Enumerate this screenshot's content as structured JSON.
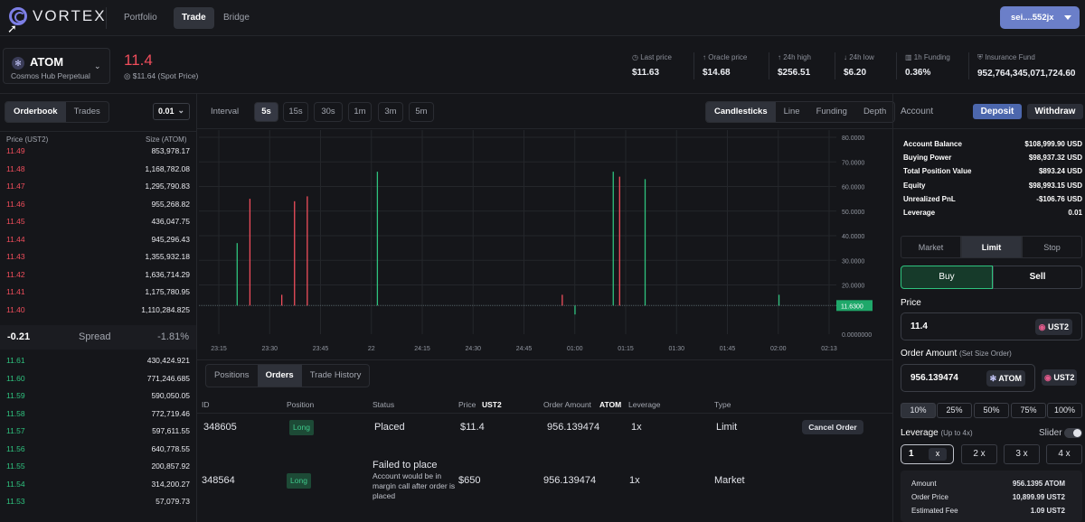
{
  "topbar": {
    "brand": "VORTEX",
    "nav": [
      "Portfolio",
      "Trade",
      "Bridge"
    ],
    "wallet": "sei....552jx"
  },
  "market": {
    "symbol": "ATOM",
    "name": "Cosmos Hub Perpetual",
    "price": "11.4",
    "spot": "$11.64 (Spot Price)"
  },
  "stats": [
    {
      "label": "Last price",
      "value": "$11.63"
    },
    {
      "label": "Oracle price",
      "value": "$14.68"
    },
    {
      "label": "24h high",
      "value": "$256.51"
    },
    {
      "label": "24h low",
      "value": "$6.20"
    },
    {
      "label": "1h Funding",
      "value": "0.36%"
    },
    {
      "label": "Insurance Fund",
      "value": "952,764,345,071,724.60"
    }
  ],
  "orderbook": {
    "tabs": [
      "Orderbook",
      "Trades"
    ],
    "tick": "0.01",
    "col_price": "Price (UST2)",
    "col_size": "Size (ATOM)",
    "asks": [
      {
        "p": "11.49",
        "s": "853,978.17"
      },
      {
        "p": "11.48",
        "s": "1,168,782.08"
      },
      {
        "p": "11.47",
        "s": "1,295,790.83"
      },
      {
        "p": "11.46",
        "s": "955,268.82"
      },
      {
        "p": "11.45",
        "s": "436,047.75"
      },
      {
        "p": "11.44",
        "s": "945,296.43"
      },
      {
        "p": "11.43",
        "s": "1,355,932.18"
      },
      {
        "p": "11.42",
        "s": "1,636,714.29"
      },
      {
        "p": "11.41",
        "s": "1,175,780.95"
      },
      {
        "p": "11.40",
        "s": "1,110,284.825"
      }
    ],
    "spread_value": "-0.21",
    "spread_label": "Spread",
    "spread_pct": "-1.81%",
    "bids": [
      {
        "p": "11.61",
        "s": "430,424.921"
      },
      {
        "p": "11.60",
        "s": "771,246.685"
      },
      {
        "p": "11.59",
        "s": "590,050.05"
      },
      {
        "p": "11.58",
        "s": "772,719.46"
      },
      {
        "p": "11.57",
        "s": "597,611.55"
      },
      {
        "p": "11.56",
        "s": "640,778.55"
      },
      {
        "p": "11.55",
        "s": "200,857.92"
      },
      {
        "p": "11.54",
        "s": "314,200.27"
      },
      {
        "p": "11.53",
        "s": "57,079.73"
      }
    ]
  },
  "chart_controls": {
    "interval_label": "Interval",
    "intervals": [
      "5s",
      "15s",
      "30s",
      "1m",
      "3m",
      "5m"
    ],
    "views": [
      "Candlesticks",
      "Line",
      "Funding",
      "Depth"
    ]
  },
  "chart_data": {
    "type": "bar",
    "x_ticks": [
      "23:15",
      "23:30",
      "23:45",
      "22",
      "24:15",
      "24:30",
      "24:45",
      "01:00",
      "01:15",
      "01:30",
      "01:45",
      "02:00",
      "02:13"
    ],
    "y_ticks": [
      "80.0000",
      "70.0000",
      "60.0000",
      "50.0000",
      "40.0000",
      "30.0000",
      "20.0000",
      "11.6300",
      "0.0000000"
    ],
    "ylim": [
      0,
      80
    ],
    "baseline": 11.63,
    "current_label": "11.6300",
    "candles": [
      {
        "t": 0.06,
        "h": 37,
        "c": "g"
      },
      {
        "t": 0.08,
        "h": 55,
        "c": "r"
      },
      {
        "t": 0.13,
        "h": 16,
        "c": "r"
      },
      {
        "t": 0.15,
        "h": 54,
        "c": "r"
      },
      {
        "t": 0.17,
        "h": 56,
        "c": "r"
      },
      {
        "t": 0.28,
        "h": 66,
        "c": "g"
      },
      {
        "t": 0.57,
        "h": 16,
        "c": "r"
      },
      {
        "t": 0.59,
        "h": 8,
        "c": "g"
      },
      {
        "t": 0.65,
        "h": 66,
        "c": "g"
      },
      {
        "t": 0.66,
        "h": 64,
        "c": "r"
      },
      {
        "t": 0.7,
        "h": 63,
        "c": "g"
      },
      {
        "t": 0.91,
        "h": 16,
        "c": "g"
      }
    ]
  },
  "orders": {
    "tabs": [
      "Positions",
      "Orders",
      "Trade History"
    ],
    "headers": {
      "id": "ID",
      "position": "Position",
      "status": "Status",
      "price": "Price",
      "price_unit": "UST2",
      "amount": "Order Amount",
      "amount_unit": "ATOM",
      "leverage": "Leverage",
      "type": "Type"
    },
    "rows": [
      {
        "id": "348605",
        "position": "Long",
        "status": "Placed",
        "note": "",
        "price": "$11.4",
        "amount": "956.139474",
        "leverage": "1x",
        "type": "Limit",
        "action": "Cancel Order"
      },
      {
        "id": "348564",
        "position": "Long",
        "status": "Failed to place",
        "note": "Account would be in margin call after order is placed",
        "price": "$650",
        "amount": "956.139474",
        "leverage": "1x",
        "type": "Market",
        "action": ""
      }
    ]
  },
  "account": {
    "title": "Account",
    "deposit": "Deposit",
    "withdraw": "Withdraw",
    "rows": [
      {
        "l": "Account Balance",
        "r": "$108,999.90 USD"
      },
      {
        "l": "Buying Power",
        "r": "$98,937.32 USD"
      },
      {
        "l": "Total Position Value",
        "r": "$893.24 USD"
      },
      {
        "l": "Equity",
        "r": "$98,993.15 USD"
      },
      {
        "l": "Unrealized PnL",
        "r": "-$106.76 USD"
      },
      {
        "l": "Leverage",
        "r": "0.01"
      }
    ]
  },
  "order_form": {
    "types": [
      "Market",
      "Limit",
      "Stop"
    ],
    "sides": [
      "Buy",
      "Sell"
    ],
    "price_label": "Price",
    "price_value": "11.4",
    "quote_token": "UST2",
    "amount_label": "Order Amount",
    "amount_hint": "(Set Size Order)",
    "amount_value": "956.139474",
    "base_token": "ATOM",
    "percents": [
      "10%",
      "25%",
      "50%",
      "75%",
      "100%"
    ],
    "leverage_label": "Leverage",
    "leverage_hint": "(Up to 4x)",
    "slider_label": "Slider",
    "leverage_value": "1",
    "leverage_x": "x",
    "leverage_opts": [
      "2 x",
      "3 x",
      "4 x"
    ],
    "summary": [
      {
        "l": "Amount",
        "r": "956.1395 ATOM"
      },
      {
        "l": "Order Price",
        "r": "10,899.99 UST2"
      },
      {
        "l": "Estimated Fee",
        "r": "1.09 UST2"
      }
    ]
  }
}
